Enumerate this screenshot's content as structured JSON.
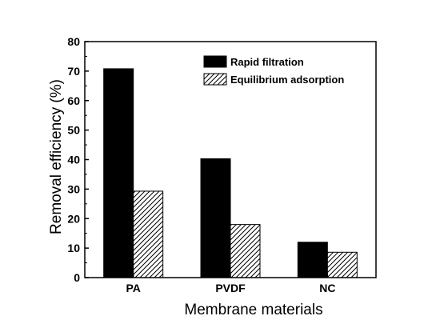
{
  "chart_data": {
    "type": "bar",
    "title": "",
    "xlabel": "Membrane materials",
    "ylabel": "Removal efficiency (%)",
    "categories": [
      "PA",
      "PVDF",
      "NC"
    ],
    "ylim": [
      0,
      80
    ],
    "yticks": [
      0,
      10,
      20,
      30,
      40,
      50,
      60,
      70,
      80
    ],
    "grid": false,
    "legend_position": "top-right",
    "series": [
      {
        "name": "Rapid filtration",
        "values": [
          70.8,
          40.3,
          12.0
        ],
        "color": "#000000",
        "fill": "solid"
      },
      {
        "name": "Equilibrium adsorption",
        "values": [
          29.3,
          18.0,
          8.6
        ],
        "color": "#000000",
        "fill": "diagonal-hatch"
      }
    ]
  }
}
